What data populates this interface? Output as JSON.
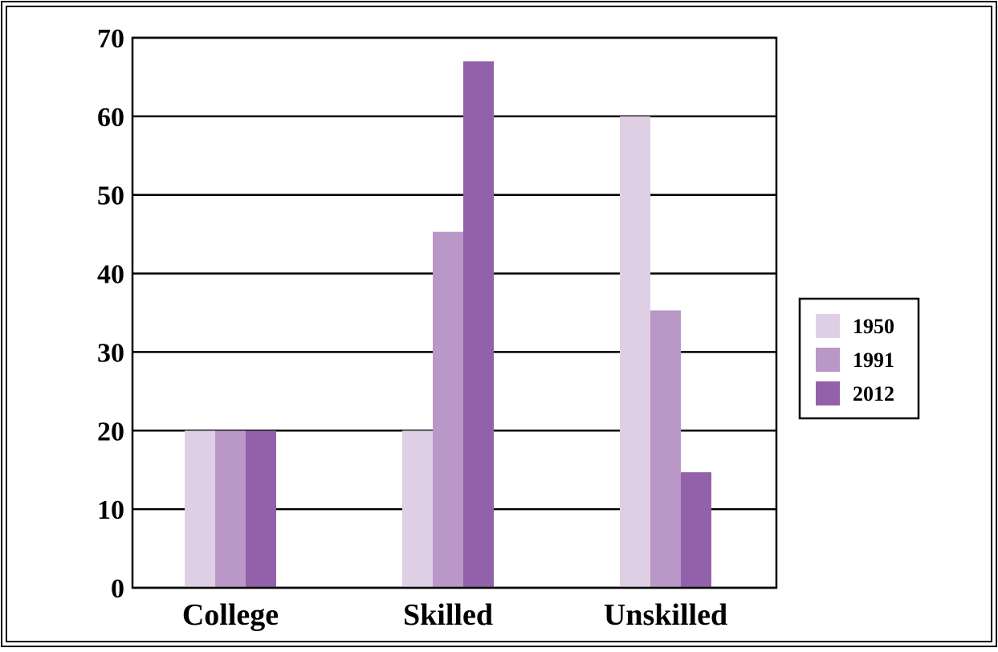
{
  "chart_data": {
    "type": "bar",
    "title": "",
    "xlabel": "",
    "ylabel": "",
    "categories": [
      "College",
      "Skilled",
      "Unskilled"
    ],
    "series": [
      {
        "name": "1950",
        "values": [
          20,
          20,
          60
        ],
        "color": "#dfcfe4"
      },
      {
        "name": "1991",
        "values": [
          20,
          45.3,
          35.3
        ],
        "color": "#b997c7"
      },
      {
        "name": "2012",
        "values": [
          20,
          67,
          14.7
        ],
        "color": "#9361a9"
      }
    ],
    "ylim": [
      0,
      70
    ],
    "yticks": [
      0,
      10,
      20,
      30,
      40,
      50,
      60,
      70
    ],
    "grid": true,
    "legend_position": "right"
  }
}
